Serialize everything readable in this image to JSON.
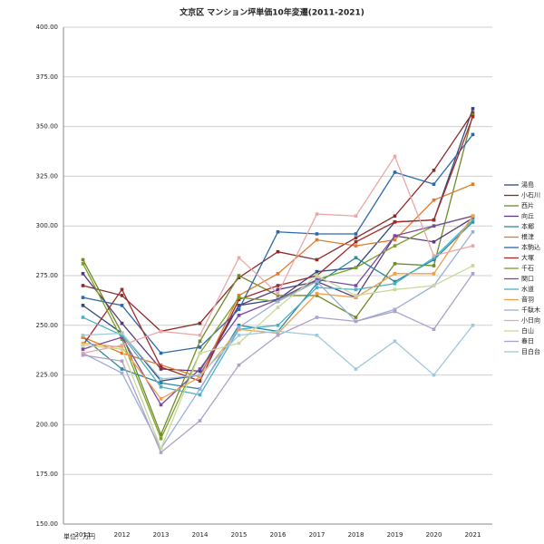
{
  "chart_data": {
    "type": "line",
    "title": "文京区 マンション坪単価10年変遷(2011-2021)",
    "unit_note": "単位：万円",
    "categories": [
      "2011",
      "2012",
      "2013",
      "2014",
      "2015",
      "2016",
      "2017",
      "2018",
      "2019",
      "2020",
      "2021"
    ],
    "ylim": [
      150,
      400
    ],
    "yticks": [
      {
        "value": 150,
        "label": "150.00"
      },
      {
        "value": 175,
        "label": "175.00"
      },
      {
        "value": 200,
        "label": "200.00"
      },
      {
        "value": 225,
        "label": "225.00"
      },
      {
        "value": 250,
        "label": "250.00"
      },
      {
        "value": 275,
        "label": "275.00"
      },
      {
        "value": 300,
        "label": "300.00"
      },
      {
        "value": 325,
        "label": "325.00"
      },
      {
        "value": 350,
        "label": "350.00"
      },
      {
        "value": 375,
        "label": "375.00"
      },
      {
        "value": 400,
        "label": "400.00"
      }
    ],
    "grid": true,
    "legend": "right",
    "series": [
      {
        "name": "湯島",
        "color": "#2e4a7a",
        "values": [
          260,
          246,
          222,
          225,
          260,
          263,
          277,
          279,
          302,
          303,
          359
        ]
      },
      {
        "name": "小石川",
        "color": "#8b2a2a",
        "values": [
          270,
          265,
          247,
          251,
          274,
          287,
          283,
          294,
          305,
          328,
          357
        ]
      },
      {
        "name": "西片",
        "color": "#6f8a2a",
        "values": [
          283,
          246,
          195,
          242,
          275,
          265,
          265,
          254,
          281,
          280,
          356
        ]
      },
      {
        "name": "向丘",
        "color": "#5a3a7a",
        "values": [
          276,
          251,
          228,
          227,
          260,
          268,
          272,
          264,
          295,
          292,
          304
        ]
      },
      {
        "name": "本郷",
        "color": "#2a8aa0",
        "values": [
          244,
          228,
          221,
          218,
          250,
          247,
          271,
          284,
          272,
          283,
          302
        ]
      },
      {
        "name": "根津",
        "color": "#e07a2a",
        "values": [
          244,
          236,
          230,
          224,
          265,
          276,
          293,
          290,
          293,
          313,
          321
        ]
      },
      {
        "name": "本駒込",
        "color": "#2a6aaa",
        "values": [
          264,
          260,
          236,
          239,
          258,
          297,
          296,
          296,
          327,
          321,
          346
        ]
      },
      {
        "name": "大塚",
        "color": "#a02a2a",
        "values": [
          240,
          268,
          229,
          222,
          263,
          270,
          275,
          292,
          302,
          303,
          355
        ]
      },
      {
        "name": "千石",
        "color": "#7aa02a",
        "values": [
          281,
          243,
          193,
          236,
          264,
          262,
          273,
          279,
          290,
          300,
          305
        ]
      },
      {
        "name": "関口",
        "color": "#7a4aa0",
        "values": [
          238,
          244,
          210,
          228,
          255,
          263,
          273,
          270,
          295,
          300,
          305
        ]
      },
      {
        "name": "水道",
        "color": "#4ab0c8",
        "values": [
          254,
          245,
          219,
          215,
          248,
          250,
          269,
          268,
          271,
          284,
          303
        ]
      },
      {
        "name": "音羽",
        "color": "#f0a04a",
        "values": [
          241,
          239,
          213,
          224,
          248,
          246,
          266,
          264,
          276,
          276,
          305
        ]
      },
      {
        "name": "千駄木",
        "color": "#9ab0d8",
        "values": [
          236,
          226,
          188,
          218,
          249,
          262,
          272,
          252,
          258,
          270,
          297
        ]
      },
      {
        "name": "小日向",
        "color": "#e8a8a8",
        "values": [
          236,
          240,
          247,
          245,
          284,
          266,
          306,
          305,
          335,
          285,
          290
        ]
      },
      {
        "name": "白山",
        "color": "#c8d89a",
        "values": [
          240,
          238,
          188,
          236,
          241,
          259,
          275,
          265,
          268,
          270,
          280
        ]
      },
      {
        "name": "春日",
        "color": "#b0a0c8",
        "values": [
          235,
          232,
          186,
          202,
          230,
          245,
          254,
          252,
          257,
          248,
          276
        ]
      },
      {
        "name": "目白台",
        "color": "#a0c8d8",
        "values": [
          245,
          246,
          223,
          225,
          245,
          247,
          245,
          228,
          242,
          225,
          250
        ]
      }
    ]
  }
}
